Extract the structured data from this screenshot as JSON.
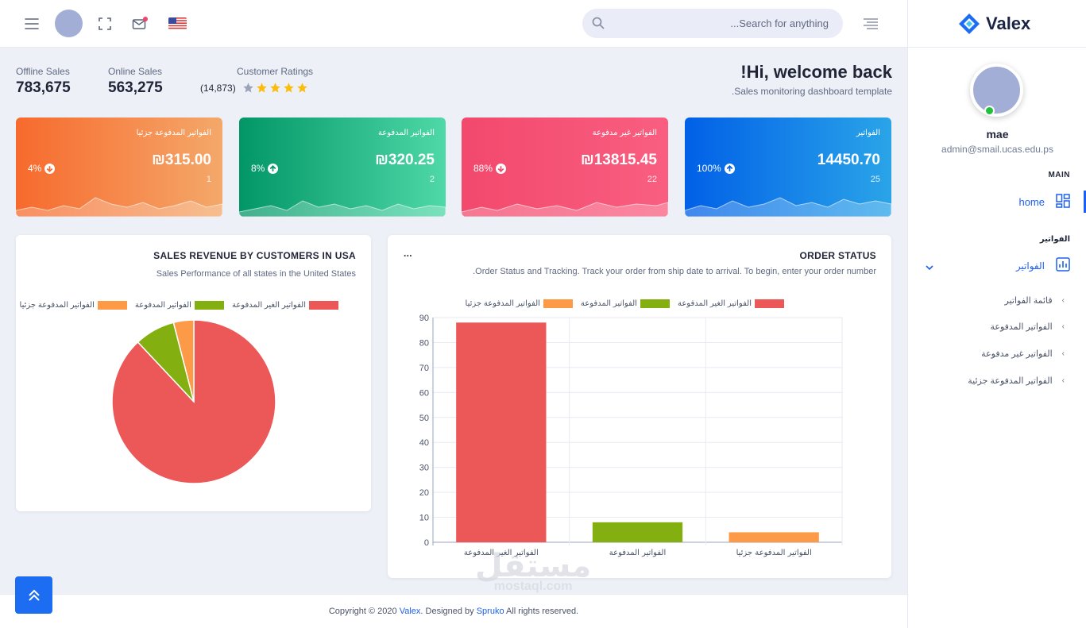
{
  "header": {
    "search_placeholder": "Search for anything...",
    "menu_icon": "hamburger-icon",
    "fullscreen_icon": "fullscreen-icon",
    "mail_icon": "mail-icon",
    "flag_icon": "us-flag-icon"
  },
  "sidebar": {
    "brand": "Valex",
    "user_name": "mae",
    "user_email": "admin@smail.ucas.edu.ps",
    "main_label": "MAIN",
    "home_label": "home",
    "invoices_category": "الفواتير",
    "invoices_label": "الفواتير",
    "sub_items": [
      "قائمة الفواتير",
      "الفواتير المدفوعة",
      "الفواتير غير مدفوعة",
      "الفواتير المدفوعة جزئية"
    ]
  },
  "welcome": {
    "title": "Hi, welcome back!",
    "subtitle": "Sales monitoring dashboard template."
  },
  "stats": {
    "offline_label": "Offline Sales",
    "offline_value": "783,675",
    "online_label": "Online Sales",
    "online_value": "563,275",
    "ratings_label": "Customer Ratings",
    "ratings_count": "(14,873)",
    "ratings_stars": 4
  },
  "kpis": [
    {
      "title": "الفواتير",
      "amount": "14450.70",
      "count": "25",
      "pct": "100%",
      "trend": "up",
      "colors": [
        "#0160e7",
        "#2aa4e8"
      ]
    },
    {
      "title": "الفواتير غير مدفوعة",
      "amount": "₪13815.45",
      "count": "22",
      "pct": "88%",
      "trend": "down",
      "colors": [
        "#f2496d",
        "#f95e80"
      ]
    },
    {
      "title": "الفواتير المدفوعة",
      "amount": "₪320.25",
      "count": "2",
      "pct": "8%",
      "trend": "up",
      "colors": [
        "#029666",
        "#4fd8a8"
      ]
    },
    {
      "title": "الفواتير المدفوعة جزئيا",
      "amount": "₪315.00",
      "count": "1",
      "pct": "4%",
      "trend": "down",
      "colors": [
        "#f76a2d",
        "#f4a86a"
      ]
    }
  ],
  "pie_panel": {
    "title": "SALES REVENUE BY CUSTOMERS IN USA",
    "subtitle": "Sales Performance of all states in the United States"
  },
  "bar_panel": {
    "title": "ORDER STATUS",
    "more": "...",
    "subtitle": "Order Status and Tracking. Track your order from ship date to arrival. To begin, enter your order number."
  },
  "legend": [
    "الفواتير الغير المدفوعة",
    "الفواتير المدفوعة",
    "الفواتير المدفوعة جزئيا"
  ],
  "chart_data": [
    {
      "type": "pie",
      "categories": [
        "الفواتير الغير المدفوعة",
        "الفواتير المدفوعة",
        "الفواتير المدفوعة جزئيا"
      ],
      "values": [
        88,
        8,
        4
      ],
      "colors": [
        "#ec5858",
        "#83b010",
        "#fd9a47"
      ],
      "legend_position": "top"
    },
    {
      "type": "bar",
      "categories": [
        "الفواتير الغير المدفوعة",
        "الفواتير المدفوعة",
        "الفواتير المدفوعة جزئيا"
      ],
      "values": [
        88,
        8,
        4
      ],
      "colors": [
        "#ec5858",
        "#83b010",
        "#fd9a47"
      ],
      "ylim": [
        0,
        90
      ],
      "yticks": [
        0,
        10,
        20,
        30,
        40,
        50,
        60,
        70,
        80,
        90
      ],
      "grid": true,
      "legend_position": "top"
    }
  ],
  "footer": {
    "prefix": "Copyright © 2020 ",
    "brand": "Valex",
    "middle": ". Designed by ",
    "designer": "Spruko",
    "suffix": " All rights reserved."
  },
  "watermark": {
    "arabic": "مستقل",
    "latin": "mostaql.com"
  }
}
